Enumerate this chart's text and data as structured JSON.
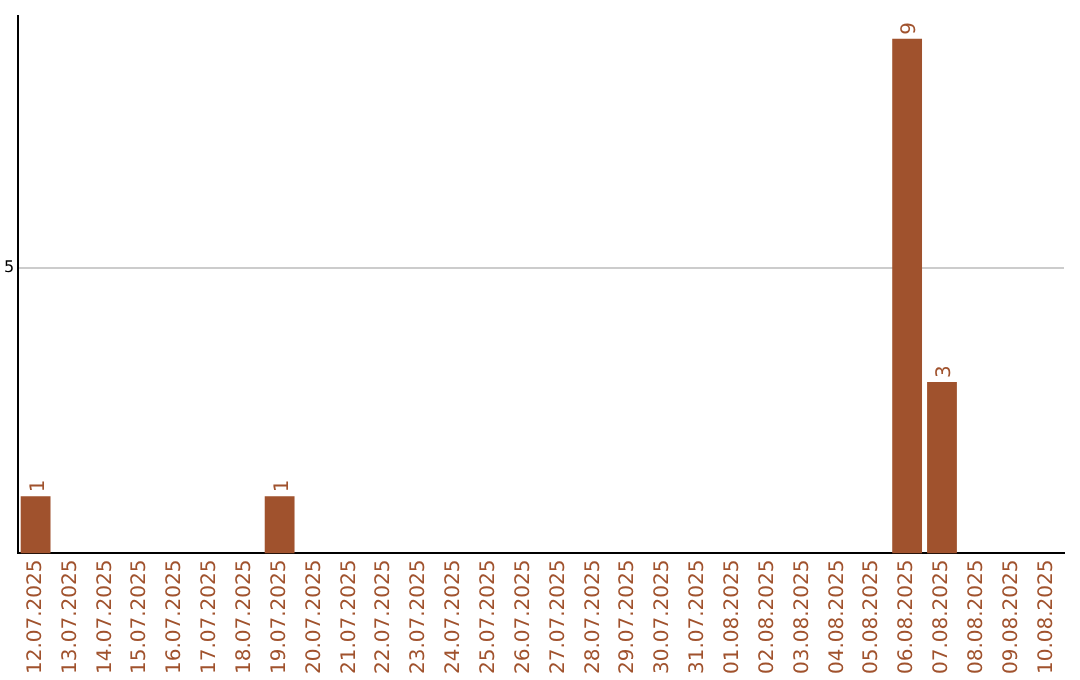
{
  "chart_data": {
    "type": "bar",
    "categories": [
      "12.07.2025",
      "13.07.2025",
      "14.07.2025",
      "15.07.2025",
      "16.07.2025",
      "17.07.2025",
      "18.07.2025",
      "19.07.2025",
      "20.07.2025",
      "21.07.2025",
      "22.07.2025",
      "23.07.2025",
      "24.07.2025",
      "25.07.2025",
      "26.07.2025",
      "27.07.2025",
      "28.07.2025",
      "29.07.2025",
      "30.07.2025",
      "31.07.2025",
      "01.08.2025",
      "02.08.2025",
      "03.08.2025",
      "04.08.2025",
      "05.08.2025",
      "06.08.2025",
      "07.08.2025",
      "08.08.2025",
      "09.08.2025",
      "10.08.2025"
    ],
    "values": [
      1,
      0,
      0,
      0,
      0,
      0,
      0,
      1,
      0,
      0,
      0,
      0,
      0,
      0,
      0,
      0,
      0,
      0,
      0,
      0,
      0,
      0,
      0,
      0,
      0,
      9,
      3,
      0,
      0,
      0
    ],
    "value_labels": [
      "1",
      null,
      null,
      null,
      null,
      null,
      null,
      "1",
      null,
      null,
      null,
      null,
      null,
      null,
      null,
      null,
      null,
      null,
      null,
      null,
      null,
      null,
      null,
      null,
      null,
      "9",
      "3",
      null,
      null,
      null
    ],
    "color": "#a0522d",
    "ylim": [
      0,
      9.4
    ],
    "yticks": [
      5
    ],
    "grid": "y",
    "legend": false
  }
}
